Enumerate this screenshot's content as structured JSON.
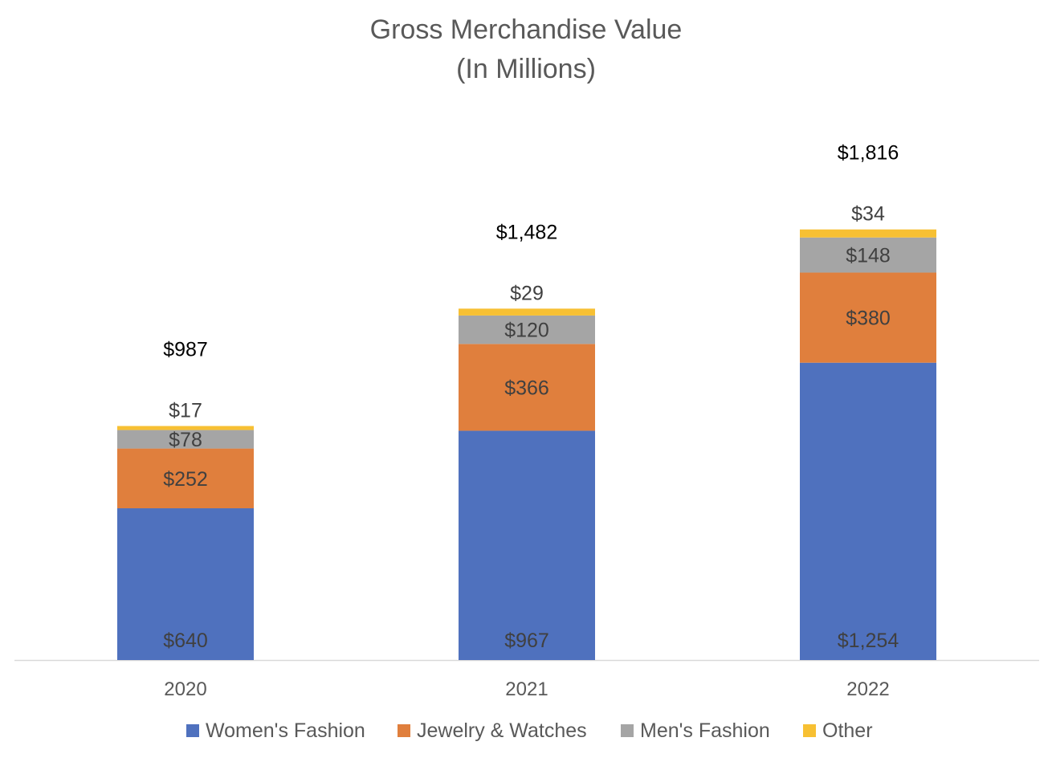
{
  "chart_data": {
    "type": "bar",
    "stacked": true,
    "title": "Gross Merchandise Value",
    "subtitle": "(In Millions)",
    "xlabel": "",
    "ylabel": "",
    "categories": [
      "2020",
      "2021",
      "2022"
    ],
    "series": [
      {
        "name": "Women's Fashion",
        "color": "#4F71BE",
        "values": [
          640,
          967,
          1254
        ],
        "labels": [
          "$640",
          "$967",
          "$1,254"
        ]
      },
      {
        "name": "Jewelry & Watches",
        "color": "#E07F3D",
        "values": [
          252,
          366,
          380
        ],
        "labels": [
          "$252",
          "$366",
          "$380"
        ]
      },
      {
        "name": "Men's Fashion",
        "color": "#A5A5A5",
        "values": [
          78,
          120,
          148
        ],
        "labels": [
          "$78",
          "$120",
          "$148"
        ]
      },
      {
        "name": "Other",
        "color": "#F7C033",
        "values": [
          17,
          29,
          34
        ],
        "labels": [
          "$17",
          "$29",
          "$34"
        ]
      }
    ],
    "totals": [
      987,
      1482,
      1816
    ],
    "total_labels": [
      "$987",
      "$1,482",
      "$1,816"
    ],
    "ylim": [
      0,
      2000
    ],
    "grid": false,
    "legend_position": "bottom"
  }
}
